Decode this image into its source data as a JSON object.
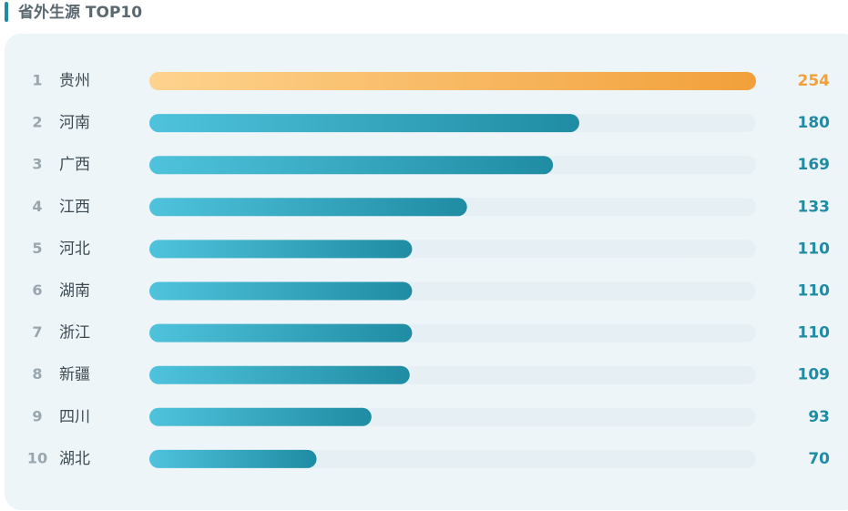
{
  "chart_data": {
    "type": "bar",
    "title": "省外生源 TOP10",
    "ranks": [
      "1",
      "2",
      "3",
      "4",
      "5",
      "6",
      "7",
      "8",
      "9",
      "10"
    ],
    "categories": [
      "贵州",
      "河南",
      "广西",
      "江西",
      "河北",
      "湖南",
      "浙江",
      "新疆",
      "四川",
      "湖北"
    ],
    "values": [
      254,
      180,
      169,
      133,
      110,
      110,
      110,
      109,
      93,
      70
    ],
    "xlim": [
      0,
      254
    ],
    "color": [
      "#4fc3dc",
      "#1f8ca3"
    ],
    "highlight_color": [
      "#fed38e",
      "#f2a03a"
    ]
  }
}
